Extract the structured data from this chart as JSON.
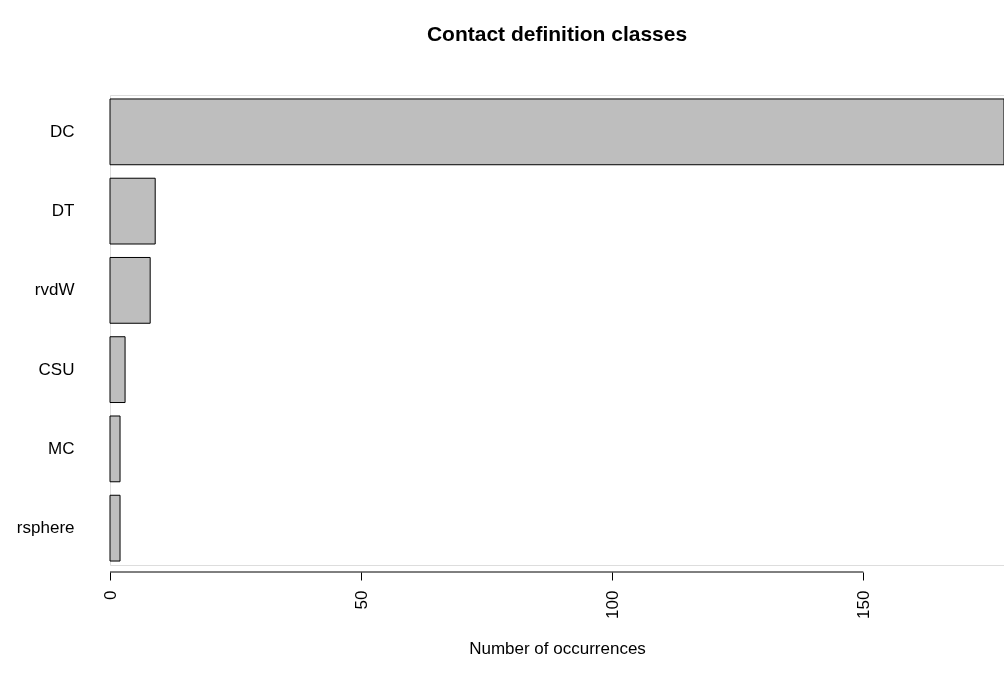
{
  "chart_data": {
    "type": "bar",
    "orientation": "horizontal",
    "title": "Contact definition classes",
    "xlabel": "Number of occurrences",
    "categories": [
      "DC",
      "DT",
      "rvdW",
      "CSU",
      "MC",
      "rsphere"
    ],
    "values": [
      178,
      9,
      8,
      3,
      2,
      2
    ],
    "color": "#bebebe",
    "xlim": [
      0,
      178
    ],
    "xticks": [
      0,
      50,
      100,
      150
    ],
    "grid": false
  }
}
